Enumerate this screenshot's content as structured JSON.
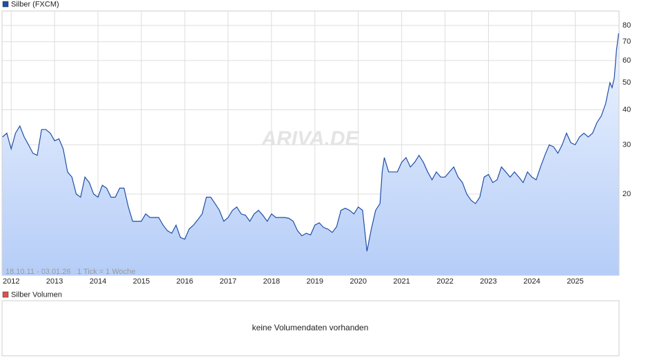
{
  "chart_data": {
    "type": "line",
    "series": [
      {
        "name": "Silber (FXCM)",
        "color": "#1f4ea6",
        "x": [
          2011.8,
          2011.9,
          2012.0,
          2012.1,
          2012.2,
          2012.3,
          2012.4,
          2012.5,
          2012.6,
          2012.7,
          2012.8,
          2012.9,
          2013.0,
          2013.1,
          2013.2,
          2013.3,
          2013.4,
          2013.5,
          2013.6,
          2013.7,
          2013.8,
          2013.9,
          2014.0,
          2014.1,
          2014.2,
          2014.3,
          2014.4,
          2014.5,
          2014.6,
          2014.7,
          2014.8,
          2014.9,
          2015.0,
          2015.1,
          2015.2,
          2015.3,
          2015.4,
          2015.5,
          2015.6,
          2015.7,
          2015.8,
          2015.9,
          2016.0,
          2016.1,
          2016.2,
          2016.3,
          2016.4,
          2016.5,
          2016.6,
          2016.7,
          2016.8,
          2016.9,
          2017.0,
          2017.1,
          2017.2,
          2017.3,
          2017.4,
          2017.5,
          2017.6,
          2017.7,
          2017.8,
          2017.9,
          2018.0,
          2018.1,
          2018.2,
          2018.3,
          2018.4,
          2018.5,
          2018.6,
          2018.7,
          2018.8,
          2018.9,
          2019.0,
          2019.1,
          2019.2,
          2019.3,
          2019.4,
          2019.5,
          2019.6,
          2019.7,
          2019.8,
          2019.9,
          2020.0,
          2020.1,
          2020.2,
          2020.3,
          2020.4,
          2020.5,
          2020.55,
          2020.6,
          2020.7,
          2020.8,
          2020.9,
          2021.0,
          2021.1,
          2021.2,
          2021.3,
          2021.4,
          2021.5,
          2021.6,
          2021.7,
          2021.8,
          2021.9,
          2022.0,
          2022.1,
          2022.2,
          2022.3,
          2022.4,
          2022.5,
          2022.6,
          2022.7,
          2022.8,
          2022.9,
          2023.0,
          2023.1,
          2023.2,
          2023.3,
          2023.4,
          2023.5,
          2023.6,
          2023.7,
          2023.8,
          2023.9,
          2024.0,
          2024.1,
          2024.2,
          2024.3,
          2024.4,
          2024.5,
          2024.6,
          2024.7,
          2024.8,
          2024.9,
          2025.0,
          2025.1,
          2025.2,
          2025.3,
          2025.4,
          2025.5,
          2025.6,
          2025.7,
          2025.8,
          2025.85,
          2025.9,
          2025.95,
          2026.0
        ],
        "values": [
          32,
          33,
          29,
          33,
          35,
          32,
          30,
          28,
          27.5,
          34,
          34,
          33,
          31,
          31.5,
          29,
          24,
          23,
          20,
          19.5,
          23,
          22,
          20,
          19.5,
          21.5,
          21,
          19.5,
          19.5,
          21,
          21,
          18,
          16,
          16,
          16,
          17,
          16.5,
          16.5,
          16.5,
          15.5,
          14.8,
          14.5,
          15.5,
          14,
          13.8,
          15,
          15.5,
          16.2,
          17,
          19.5,
          19.5,
          18.5,
          17.5,
          16,
          16.5,
          17.5,
          18,
          17,
          16.8,
          16,
          17,
          17.5,
          16.8,
          16,
          17,
          16.5,
          16.5,
          16.5,
          16.4,
          16,
          14.8,
          14.2,
          14.5,
          14.3,
          15.5,
          15.8,
          15.2,
          15,
          14.6,
          15.3,
          17.5,
          17.8,
          17.5,
          17,
          18,
          17.5,
          12.5,
          15,
          17.5,
          18.5,
          24,
          27,
          24,
          24,
          24,
          26,
          27,
          25,
          26,
          27.5,
          26,
          24,
          22.5,
          24,
          23,
          23,
          24,
          25,
          23,
          22,
          20,
          19,
          18.5,
          19.5,
          23,
          23.5,
          22,
          22.5,
          25,
          24,
          23,
          24,
          23,
          22,
          24,
          23,
          22.5,
          25,
          27.5,
          30,
          29.5,
          28,
          30,
          33,
          30.5,
          30,
          32,
          33,
          32,
          33,
          36,
          38,
          42,
          50,
          48,
          52,
          65,
          75
        ]
      }
    ],
    "xlim": [
      2011.79,
      2026.01
    ],
    "xticks": [
      2012,
      2013,
      2014,
      2015,
      2016,
      2017,
      2018,
      2019,
      2020,
      2021,
      2022,
      2023,
      2024,
      2025
    ],
    "ylim": [
      10.26,
      90.1
    ],
    "yticks": [
      20,
      30,
      40,
      50,
      60,
      70,
      80
    ],
    "log_y": true,
    "grid": true,
    "watermark": "ARIVA.DE",
    "range_note": "18.10.11 - 03.01.26",
    "tick_note": "1 Tick = 1 Woche"
  },
  "volume_panel": {
    "legend": "Silber Volumen",
    "color": "#d9534f",
    "message": "keine Volumendaten vorhanden"
  }
}
